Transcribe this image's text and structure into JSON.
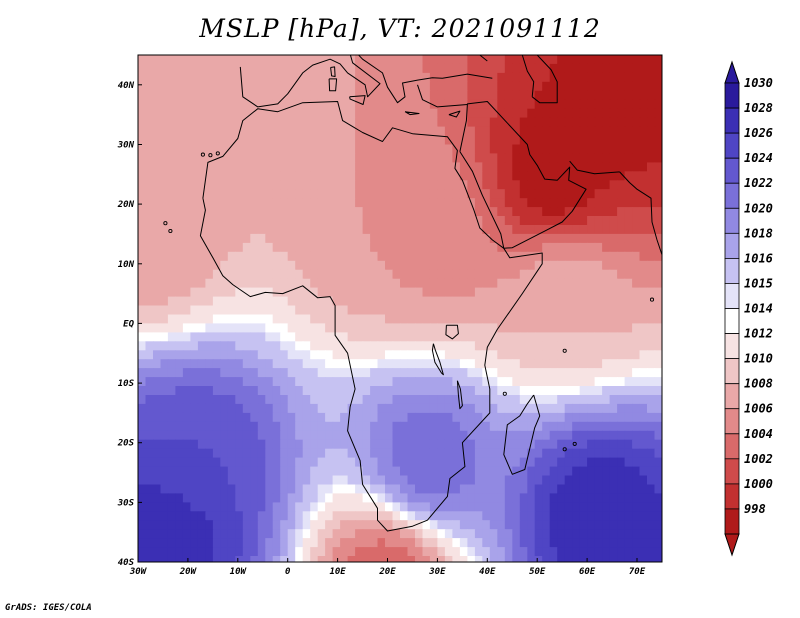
{
  "title": "MSLP [hPa], VT: 2021091112",
  "credit": "GrADS: IGES/COLA",
  "chart_data": {
    "type": "heatmap",
    "title": "MSLP [hPa], VT: 2021091112",
    "lon_range": [
      -30,
      75
    ],
    "lat_range": [
      -40,
      45
    ],
    "lon_ticks": [
      "30W",
      "20W",
      "10W",
      "0",
      "10E",
      "20E",
      "30E",
      "40E",
      "50E",
      "60E",
      "70E"
    ],
    "lat_ticks": [
      "40S",
      "30S",
      "20S",
      "10S",
      "EQ",
      "10N",
      "20N",
      "30N",
      "40N"
    ],
    "colorbar": {
      "levels": [
        "1030",
        "1028",
        "1026",
        "1024",
        "1022",
        "1020",
        "1018",
        "1016",
        "1015",
        "1014",
        "1012",
        "1010",
        "1008",
        "1006",
        "1004",
        "1002",
        "1000",
        "998"
      ],
      "colors": [
        "#2a1a9c",
        "#3b2fb4",
        "#4f45c4",
        "#6358cf",
        "#7a70d9",
        "#9189e2",
        "#a9a3ea",
        "#c6c2f2",
        "#e4e3f8",
        "#ffffff",
        "#f7e3e3",
        "#efc6c6",
        "#e9a8a8",
        "#e28a8a",
        "#d96a6a",
        "#cf4b4b",
        "#c23030",
        "#b01a1a"
      ]
    },
    "pressure_centers": [
      {
        "lon": -24,
        "lat": -35,
        "value": 1030
      },
      {
        "lon": 62,
        "lat": -32,
        "value": 1030
      },
      {
        "lon": -18,
        "lat": -23,
        "value": 1026
      },
      {
        "lon": -20,
        "lat": 42,
        "value": 1010
      },
      {
        "lon": -27,
        "lat": 15,
        "value": 1008
      },
      {
        "lon": 53,
        "lat": 24,
        "value": 998
      },
      {
        "lon": 65,
        "lat": 35,
        "value": 999
      },
      {
        "lon": 18,
        "lat": 17,
        "value": 1008
      },
      {
        "lon": 30,
        "lat": 15,
        "value": 1007
      },
      {
        "lon": 20,
        "lat": -42,
        "value": 1004
      },
      {
        "lon": 28,
        "lat": -23,
        "value": 1024
      },
      {
        "lon": 55,
        "lat": 5,
        "value": 1010
      }
    ]
  }
}
